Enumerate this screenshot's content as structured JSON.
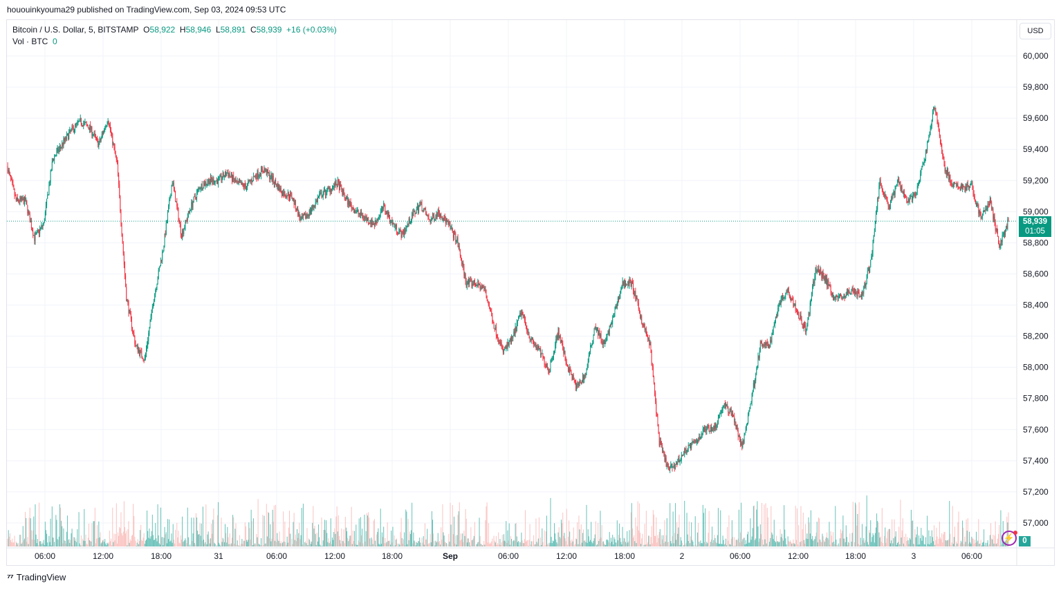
{
  "header": {
    "published": "hououinkyouma29 published on TradingView.com, Sep 03, 2024 09:53 UTC"
  },
  "legend": {
    "symbol": "Bitcoin / U.S. Dollar, 5, BITSTAMP",
    "o_label": "O",
    "o": "58,922",
    "h_label": "H",
    "h": "58,946",
    "l_label": "L",
    "l": "58,891",
    "c_label": "C",
    "c": "58,939",
    "change": "+16 (+0.03%)",
    "vol_label": "Vol · BTC",
    "vol": "0"
  },
  "currency_button": "USD",
  "last_price": {
    "price": "58,939",
    "countdown": "01:05"
  },
  "volume_last": "0",
  "footer": {
    "brand": "TradingView"
  },
  "colors": {
    "up": "#089981",
    "down": "#f23645",
    "up_vol": "#26a69a",
    "down_vol": "#f7a9a7"
  },
  "chart_data": {
    "type": "candlestick",
    "symbol": "BTCUSD",
    "interval": "5",
    "ylim": [
      56900,
      60100
    ],
    "yticks": [
      "60,000",
      "59,800",
      "59,600",
      "59,400",
      "59,200",
      "59,000",
      "58,800",
      "58,600",
      "58,400",
      "58,200",
      "58,000",
      "57,800",
      "57,600",
      "57,400",
      "57,200",
      "57,000"
    ],
    "ytick_values": [
      60000,
      59800,
      59600,
      59400,
      59200,
      59000,
      58800,
      58600,
      58400,
      58200,
      58000,
      57800,
      57600,
      57400,
      57200,
      57000
    ],
    "xticks": [
      "06:00",
      "12:00",
      "18:00",
      "31",
      "06:00",
      "12:00",
      "18:00",
      "Sep",
      "06:00",
      "12:00",
      "18:00",
      "2",
      "06:00",
      "12:00",
      "18:00",
      "3",
      "06:00"
    ],
    "xticks_bold": [
      false,
      false,
      false,
      false,
      false,
      false,
      false,
      true,
      false,
      false,
      false,
      false,
      false,
      false,
      false,
      false,
      false
    ],
    "last_close": 58939,
    "approx_hourly_closes": [
      59294,
      59070,
      59070,
      58830,
      58920,
      59340,
      59430,
      59520,
      59580,
      59540,
      59430,
      59600,
      59300,
      58450,
      58140,
      58050,
      58450,
      58760,
      59200,
      58850,
      59030,
      59160,
      59200,
      59200,
      59250,
      59180,
      59160,
      59230,
      59270,
      59200,
      59120,
      59100,
      58940,
      59000,
      59100,
      59140,
      59180,
      59070,
      59000,
      58960,
      58920,
      59030,
      58920,
      58850,
      58960,
      59050,
      58940,
      59000,
      58920,
      58810,
      58540,
      58540,
      58500,
      58270,
      58100,
      58180,
      58360,
      58180,
      58100,
      57980,
      58230,
      58010,
      57870,
      57960,
      58270,
      58140,
      58320,
      58540,
      58540,
      58320,
      58140,
      57520,
      57340,
      57390,
      57480,
      57520,
      57610,
      57610,
      57760,
      57700,
      57480,
      57790,
      58140,
      58140,
      58410,
      58500,
      58360,
      58230,
      58630,
      58580,
      58450,
      58450,
      58500,
      58450,
      58670,
      59200,
      59030,
      59200,
      59070,
      59120,
      59380,
      59690,
      59290,
      59160,
      59160,
      59160,
      58960,
      59070,
      58780,
      58939
    ]
  }
}
